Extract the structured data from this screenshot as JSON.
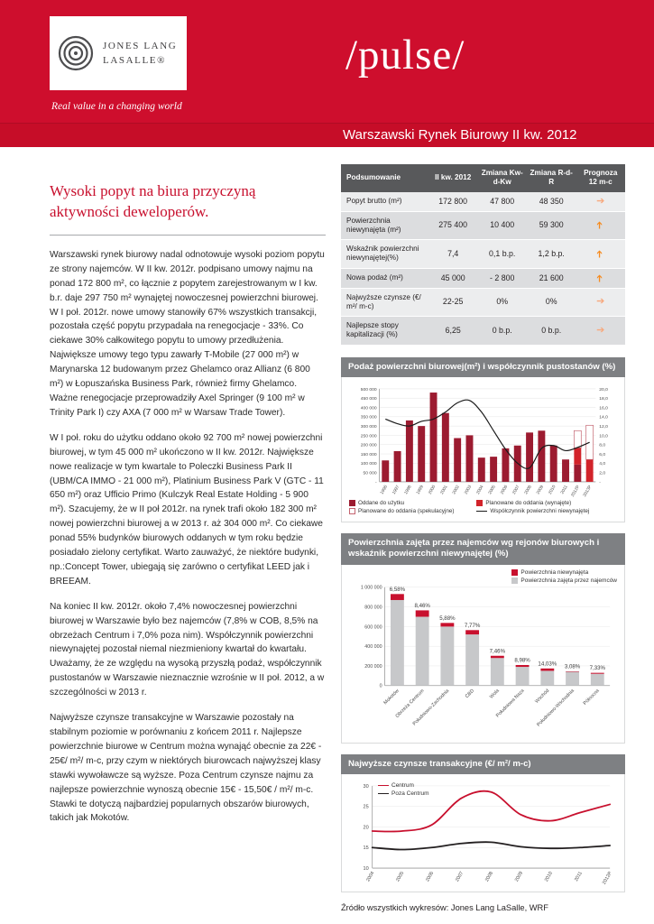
{
  "header": {
    "logo_line1": "JONES LANG",
    "logo_line2": "LASALLE®",
    "tagline": "Real value in a changing world",
    "pulse": "/pulse/",
    "report_title": "Warszawski Rynek Biurowy II kw. 2012"
  },
  "article": {
    "headline": "Wysoki popyt na biura przyczyną aktywności deweloperów.",
    "paragraphs": [
      "Warszawski rynek biurowy nadal odnotowuje wysoki poziom popytu ze strony najemców. W II kw. 2012r. podpisano umowy najmu na ponad 172 800 m², co łącznie z popytem zarejestrowanym w I kw. b.r. daje 297 750 m² wynajętej nowoczesnej powierzchni biurowej. W I poł. 2012r. nowe umowy stanowiły 67% wszystkich transakcji, pozostała część popytu przypadała na renegocjacje - 33%. Co ciekawe 30% całkowitego popytu to umowy przedłużenia. Największe umowy tego typu zawarły T-Mobile (27 000 m²) w Marynarska 12 budowanym przez Ghelamco oraz Allianz (6 800 m²) w Łopuszańska Business Park, również firmy Ghelamco. Ważne renegocjacje przeprowadziły Axel Springer (9 100 m² w Trinity Park I) czy AXA (7 000 m² w Warsaw Trade Tower).",
      "W I poł. roku do użytku oddano około 92 700 m² nowej powierzchni biurowej, w tym 45 000 m² ukończono w II kw. 2012r. Największe nowe realizacje w tym kwartale to Poleczki Business Park II (UBM/CA IMMO - 21 000 m²), Platinium Business Park V (GTC - 11 650 m²) oraz Ufficio Primo (Kulczyk Real Estate Holding - 5 900 m²). Szacujemy, że w II poł 2012r. na rynek trafi około 182 300 m² nowej powierzchni biurowej a w 2013 r. aż 304 000 m². Co ciekawe ponad 55% budynków biurowych oddanych w tym roku będzie posiadało zielony certyfikat. Warto zauważyć, że niektóre budynki, np.:Concept Tower, ubiegają się zarówno o certyfikat LEED jak i BREEAM.",
      "Na koniec II kw. 2012r. około 7,4% nowoczesnej powierzchni biurowej w Warszawie było bez najemców (7,8% w COB, 8,5% na obrzeżach Centrum i 7,0% poza nim). Współczynnik powierzchni niewynajętej pozostał niemal niezmieniony kwartał do kwartału. Uważamy, że ze względu na wysoką przyszłą podaż, współczynnik pustostanów w Warszawie nieznacznie wzrośnie w II poł. 2012, a w szczególności w 2013 r.",
      "Najwyższe czynsze transakcyjne w Warszawie pozostały na stabilnym poziomie w porównaniu z końcem 2011 r. Najlepsze powierzchnie biurowe w Centrum można wynająć obecnie za 22€ - 25€/ m²/ m-c, przy czym w niektórych biurowcach najwyższej klasy stawki wywoławcze są wyższe. Poza Centrum czynsze najmu za najlepsze powierzchnie wynoszą obecnie 15€ - 15,50€ / m²/ m-c. Stawki te dotyczą najbardziej popularnych obszarów biurowych, takich jak Mokotów."
    ]
  },
  "summary_table": {
    "headers": [
      "Podsumowanie",
      "II kw. 2012",
      "Zmiana Kw-d-Kw",
      "Zmiana R-d-R",
      "Prognoza 12 m-c"
    ],
    "rows": [
      {
        "label": "Popyt brutto (m²)",
        "value": "172 800",
        "qoq": "47 800",
        "yoy": "48 350",
        "forecast": "right"
      },
      {
        "label": "Powierzchnia niewynajęta (m²)",
        "value": "275 400",
        "qoq": "10 400",
        "yoy": "59 300",
        "forecast": "up"
      },
      {
        "label": "Wskaźnik powierzchni niewynajętej(%)",
        "value": "7,4",
        "qoq": "0,1 b.p.",
        "yoy": "1,2 b.p.",
        "forecast": "up"
      },
      {
        "label": "Nowa podaż (m²)",
        "value": "45 000",
        "qoq": "- 2 800",
        "yoy": "21 600",
        "forecast": "up"
      },
      {
        "label": "Najwyższe czynsze (€/ m²/ m-c)",
        "value": "22-25",
        "qoq": "0%",
        "yoy": "0%",
        "forecast": "right"
      },
      {
        "label": "Najlepsze stopy kapitalizacji (%)",
        "value": "6,25",
        "qoq": "0 b.p.",
        "yoy": "0 b.p.",
        "forecast": "right"
      }
    ]
  },
  "chart_data": [
    {
      "type": "bar+line",
      "title": "Podaż powierzchni biurowej(m²) i współczynnik pustostanów (%)",
      "categories": [
        "1996",
        "1997",
        "1998",
        "1999",
        "2000",
        "2001",
        "2002",
        "2003",
        "2004",
        "2005",
        "2006",
        "2007",
        "2008",
        "2009",
        "2010",
        "2011",
        "2012P",
        "2013P"
      ],
      "series": [
        {
          "name": "Oddane do użytku",
          "kind": "bar",
          "color": "#9C1B30",
          "values": [
            115000,
            165000,
            330000,
            300000,
            480000,
            370000,
            235000,
            250000,
            130000,
            135000,
            180000,
            195000,
            265000,
            275000,
            195000,
            120000,
            92700,
            0
          ]
        },
        {
          "name": "Planowane do oddania (wynajęte)",
          "kind": "bar",
          "color": "#D2232A",
          "values": [
            0,
            0,
            0,
            0,
            0,
            0,
            0,
            0,
            0,
            0,
            0,
            0,
            0,
            0,
            0,
            0,
            90000,
            120000
          ]
        },
        {
          "name": "Planowane do oddania (spekulacyjne)",
          "kind": "bar",
          "color": "#FFFFFF",
          "stroke": "#C46470",
          "values": [
            0,
            0,
            0,
            0,
            0,
            0,
            0,
            0,
            0,
            0,
            0,
            0,
            0,
            0,
            0,
            0,
            92300,
            184000
          ]
        },
        {
          "name": "Współczynnik powierzchni niewynajętej",
          "kind": "line",
          "color": "#1A1A1A",
          "axis": "right",
          "values": [
            13.5,
            12.5,
            12,
            13,
            13.5,
            15,
            17,
            17.5,
            15,
            11,
            7,
            4,
            3,
            7.2,
            7.8,
            6.7,
            7.4,
            8.5
          ]
        }
      ],
      "ylim_left": [
        0,
        500000
      ],
      "ylim_right": [
        0,
        20
      ],
      "yticks_left": [
        "-",
        "50 000",
        "100 000",
        "150 000",
        "200 000",
        "250 000",
        "300 000",
        "350 000",
        "400 000",
        "450 000",
        "500 000"
      ],
      "yticks_right": [
        "-",
        "2,0",
        "4,0",
        "6,0",
        "8,0",
        "10,0",
        "12,0",
        "14,0",
        "16,0",
        "18,0",
        "20,0"
      ]
    },
    {
      "type": "stacked-bar",
      "title": "Powierzchnia zajęta przez najemców wg rejonów biurowych i wskaźnik powierzchni niewynajętej (%)",
      "categories": [
        "Mokotów",
        "Obrzeża Centrum",
        "Południowo-Zachodnia",
        "CBD",
        "Wola",
        "Południowa Naza",
        "Wschód",
        "Południowo-Wschodnia",
        "Północna"
      ],
      "vacancy_labels": [
        "6,58%",
        "8,46%",
        "5,88%",
        "7,77%",
        "7,46%",
        "8,98%",
        "14,03%",
        "3,08%",
        "7,33%"
      ],
      "series": [
        {
          "name": "Powierzchnia niewynajęta",
          "color": "#C8102E",
          "values": [
            61000,
            65000,
            37000,
            44000,
            23000,
            19000,
            24000,
            4500,
            9500
          ]
        },
        {
          "name": "Powierzchnia zajęta przez najemców",
          "color": "#C7C8CA",
          "values": [
            870000,
            700000,
            600000,
            520000,
            280000,
            190000,
            150000,
            140000,
            120000
          ]
        }
      ],
      "ylim": [
        0,
        1000000
      ],
      "yticks": [
        "0",
        "200 000",
        "400 000",
        "600 000",
        "800 000",
        "1 000 000"
      ]
    },
    {
      "type": "line",
      "title": "Najwyższe czynsze transakcyjne (€/ m²/ m-c)",
      "x": [
        "2004",
        "2005",
        "2006",
        "2007",
        "2008",
        "2009",
        "2010",
        "2011",
        "2012P"
      ],
      "series": [
        {
          "name": "Centrum",
          "color": "#C8102E",
          "values": [
            19,
            19,
            20.5,
            27,
            28.5,
            23,
            21.5,
            23.5,
            25.5
          ]
        },
        {
          "name": "Poza Centrum",
          "color": "#231F20",
          "values": [
            15,
            14.5,
            15,
            16,
            16.3,
            15.2,
            14.8,
            15,
            15.5
          ]
        }
      ],
      "ylim": [
        10,
        30
      ],
      "yticks": [
        "10",
        "15",
        "20",
        "25",
        "30"
      ]
    }
  ],
  "footer": {
    "source": "Źródło wszystkich wykresów: Jones Lang LaSalle, WRF"
  },
  "colors": {
    "brand_red": "#CE0E2D",
    "accent_red": "#C8102E",
    "table_header_gray": "#58595B",
    "chart_header_gray": "#7E8083",
    "arrow_up_orange": "#F68B1F",
    "arrow_right_orange": "#F7A97E"
  }
}
